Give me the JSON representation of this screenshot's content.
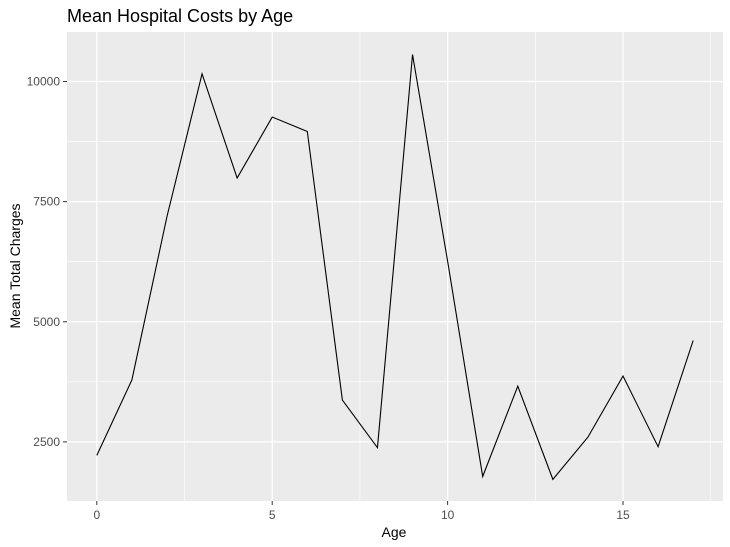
{
  "chart_data": {
    "type": "line",
    "title": "Mean Hospital Costs by Age",
    "xlabel": "Age",
    "ylabel": "Mean Total Charges",
    "x": [
      0,
      1,
      2,
      3,
      4,
      5,
      6,
      7,
      8,
      9,
      10,
      11,
      12,
      13,
      14,
      15,
      16,
      17
    ],
    "series": [
      {
        "values": [
          2220,
          3790,
          7190,
          10160,
          7990,
          9260,
          8960,
          3370,
          2380,
          10560,
          6260,
          1780,
          3660,
          1720,
          2600,
          3870,
          2400,
          4610
        ]
      }
    ],
    "xlim": [
      -0.85,
      17.85
    ],
    "ylim": [
      1270,
      11030
    ],
    "xticks": [
      0,
      5,
      10,
      15
    ],
    "xtick_labels": [
      "0",
      "5",
      "10",
      "15"
    ],
    "yticks": [
      2500,
      5000,
      7500,
      10000
    ],
    "ytick_labels": [
      "2500",
      "5000",
      "7500",
      "10000"
    ],
    "grid": true,
    "line_color": "#000000",
    "panel_background": "#EBEBEB",
    "grid_color": "#FFFFFF"
  }
}
